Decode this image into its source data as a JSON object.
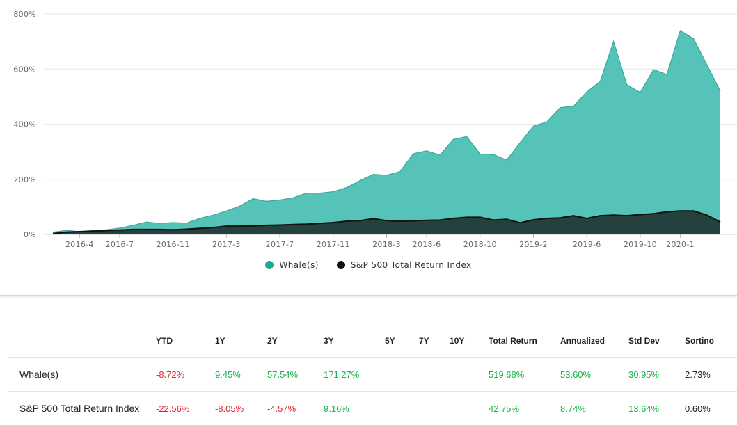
{
  "chart_data": {
    "type": "area",
    "y_ticks": [
      "800%",
      "600%",
      "400%",
      "200%",
      "0%"
    ],
    "y_tick_values": [
      800,
      600,
      400,
      200,
      0
    ],
    "ylim": [
      0,
      800
    ],
    "x_ticks": [
      "2016-4",
      "2016-7",
      "2016-11",
      "2017-3",
      "2017-7",
      "2017-11",
      "2018-3",
      "2018-6",
      "2018-10",
      "2019-2",
      "2019-6",
      "2019-10",
      "2020-1"
    ],
    "x_tick_positions": [
      2,
      5,
      9,
      13,
      17,
      21,
      25,
      28,
      32,
      36,
      40,
      44,
      47
    ],
    "x_count": 51,
    "grid": true,
    "legend_position": "bottom-center",
    "series": [
      {
        "name": "Whale(s)",
        "color": "#4fc1b5",
        "values": [
          8,
          15,
          10,
          14,
          17,
          23,
          33,
          45,
          40,
          43,
          41,
          58,
          70,
          85,
          103,
          130,
          120,
          125,
          133,
          150,
          150,
          155,
          170,
          195,
          218,
          215,
          228,
          293,
          303,
          288,
          345,
          355,
          292,
          290,
          270,
          333,
          393,
          408,
          460,
          465,
          517,
          555,
          700,
          543,
          515,
          598,
          580,
          740,
          710,
          615,
          520
        ]
      },
      {
        "name": "S&P 500 Total Return Index",
        "color": "#111111",
        "values": [
          3,
          8,
          10,
          12,
          14,
          16,
          18,
          18,
          18,
          17,
          19,
          22,
          25,
          30,
          30,
          31,
          33,
          34,
          36,
          37,
          40,
          43,
          48,
          50,
          57,
          50,
          48,
          49,
          51,
          52,
          58,
          62,
          62,
          52,
          55,
          42,
          53,
          58,
          60,
          68,
          58,
          68,
          70,
          68,
          72,
          75,
          82,
          85,
          85,
          70,
          45
        ]
      }
    ]
  },
  "legend": [
    {
      "label": "Whale(s)",
      "color": "#18a999"
    },
    {
      "label": "S&P 500 Total Return Index",
      "color": "#111111"
    }
  ],
  "table": {
    "headers": [
      "",
      "YTD",
      "1Y",
      "2Y",
      "3Y",
      "5Y",
      "7Y",
      "10Y",
      "Total Return",
      "Annualized",
      "Std Dev",
      "Sortino"
    ],
    "rows": [
      {
        "name": "Whale(s)",
        "cells": [
          {
            "v": "-8.72%",
            "c": "neg"
          },
          {
            "v": "9.45%",
            "c": "pos"
          },
          {
            "v": "57.54%",
            "c": "pos"
          },
          {
            "v": "171.27%",
            "c": "pos"
          },
          {
            "v": "",
            "c": "neutral"
          },
          {
            "v": "",
            "c": "neutral"
          },
          {
            "v": "",
            "c": "neutral"
          },
          {
            "v": "519.68%",
            "c": "pos"
          },
          {
            "v": "53.60%",
            "c": "pos"
          },
          {
            "v": "30.95%",
            "c": "pos"
          },
          {
            "v": "2.73%",
            "c": "neutral"
          }
        ]
      },
      {
        "name": "S&P 500 Total Return Index",
        "cells": [
          {
            "v": "-22.56%",
            "c": "neg"
          },
          {
            "v": "-8.05%",
            "c": "neg"
          },
          {
            "v": "-4.57%",
            "c": "neg"
          },
          {
            "v": "9.16%",
            "c": "pos"
          },
          {
            "v": "",
            "c": "neutral"
          },
          {
            "v": "",
            "c": "neutral"
          },
          {
            "v": "",
            "c": "neutral"
          },
          {
            "v": "42.75%",
            "c": "pos"
          },
          {
            "v": "8.74%",
            "c": "pos"
          },
          {
            "v": "13.64%",
            "c": "pos"
          },
          {
            "v": "0.60%",
            "c": "neutral"
          }
        ]
      }
    ]
  }
}
